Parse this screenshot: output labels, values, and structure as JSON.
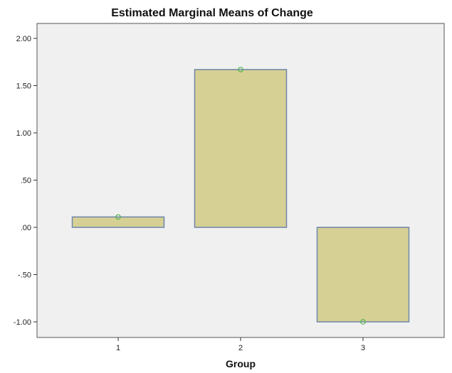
{
  "chart_data": {
    "type": "bar",
    "title": "Estimated Marginal Means of Change",
    "xlabel": "Group",
    "ylabel": "",
    "categories": [
      "1",
      "2",
      "3"
    ],
    "values": [
      0.11,
      1.67,
      -1.0
    ],
    "ylim": [
      -1.25,
      2.05
    ],
    "yticks": [
      2.0,
      1.5,
      1.0,
      0.5,
      0.0,
      -0.5,
      -1.0
    ],
    "ytick_labels": [
      "2.00",
      "1.50",
      "1.00",
      ".50",
      ".00",
      "-.50",
      "-1.00"
    ],
    "grid": false,
    "legend": "none",
    "colors": {
      "bar_fill": "#d6d095",
      "bar_stroke": "#6f86a8",
      "marker_stroke": "#4bb54b",
      "plot_bg": "#f0f0f0"
    }
  }
}
